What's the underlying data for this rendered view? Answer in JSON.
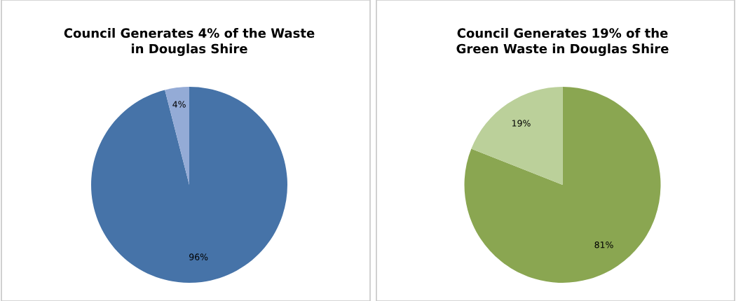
{
  "chart_data": [
    {
      "type": "pie",
      "title": "Council Generates 4% of the Waste\nin Douglas Shire",
      "categories": [
        null,
        null
      ],
      "values": [
        96,
        4
      ],
      "colors": [
        "#4673a8",
        "#94abd6"
      ],
      "value_labels": [
        "96%",
        "4%"
      ]
    },
    {
      "type": "pie",
      "title": "Council Generates 19% of the\nGreen Waste in Douglas Shire",
      "categories": [
        null,
        null
      ],
      "values": [
        81,
        19
      ],
      "colors": [
        "#8aa651",
        "#bbd09a"
      ],
      "value_labels": [
        "81%",
        "19%"
      ]
    }
  ]
}
